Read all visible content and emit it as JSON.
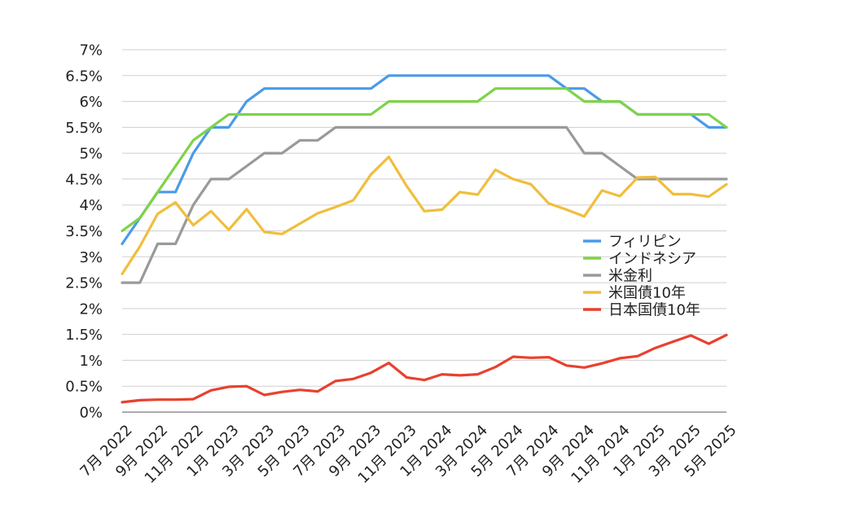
{
  "chart_data": {
    "type": "line",
    "title": "",
    "xlabel": "",
    "ylabel": "",
    "ylim": [
      0,
      7
    ],
    "y_ticks": [
      "0%",
      "0.5%",
      "1%",
      "1.5%",
      "2%",
      "2.5%",
      "3%",
      "3.5%",
      "4%",
      "4.5%",
      "5%",
      "5.5%",
      "6%",
      "6.5%",
      "7%"
    ],
    "grid": "horizontal",
    "legend_position": "right",
    "x": [
      "7月 2022",
      "8月 2022",
      "9月 2022",
      "10月 2022",
      "11月 2022",
      "12月 2022",
      "1月 2023",
      "2月 2023",
      "3月 2023",
      "4月 2023",
      "5月 2023",
      "6月 2023",
      "7月 2023",
      "8月 2023",
      "9月 2023",
      "10月 2023",
      "11月 2023",
      "12月 2023",
      "1月 2024",
      "2月 2024",
      "3月 2024",
      "4月 2024",
      "5月 2024",
      "6月 2024",
      "7月 2024",
      "8月 2024",
      "9月 2024",
      "10月 2024",
      "11月 2024",
      "12月 2024",
      "1月 2025",
      "2月 2025",
      "3月 2025",
      "4月 2025",
      "5月 2025"
    ],
    "x_tick_labels": [
      "7月 2022",
      "9月 2022",
      "11月 2022",
      "1月 2023",
      "3月 2023",
      "5月 2023",
      "7月 2023",
      "9月 2023",
      "11月 2023",
      "1月 2024",
      "3月 2024",
      "5月 2024",
      "7月 2024",
      "9月 2024",
      "11月 2024",
      "1月 2025",
      "3月 2025",
      "5月 2025"
    ],
    "series": [
      {
        "name": "フィリピン",
        "color": "#4a9be8",
        "values": [
          3.25,
          3.75,
          4.25,
          4.25,
          5.0,
          5.5,
          5.5,
          6.0,
          6.25,
          6.25,
          6.25,
          6.25,
          6.25,
          6.25,
          6.25,
          6.5,
          6.5,
          6.5,
          6.5,
          6.5,
          6.5,
          6.5,
          6.5,
          6.5,
          6.5,
          6.25,
          6.25,
          6.0,
          6.0,
          5.75,
          5.75,
          5.75,
          5.75,
          5.5,
          5.5
        ]
      },
      {
        "name": "インドネシア",
        "color": "#7dd34a",
        "values": [
          3.5,
          3.75,
          4.25,
          4.75,
          5.25,
          5.5,
          5.75,
          5.75,
          5.75,
          5.75,
          5.75,
          5.75,
          5.75,
          5.75,
          5.75,
          6.0,
          6.0,
          6.0,
          6.0,
          6.0,
          6.0,
          6.25,
          6.25,
          6.25,
          6.25,
          6.25,
          6.0,
          6.0,
          6.0,
          5.75,
          5.75,
          5.75,
          5.75,
          5.75,
          5.5
        ]
      },
      {
        "name": "米金利",
        "color": "#9a9a9a",
        "values": [
          2.5,
          2.5,
          3.25,
          3.25,
          4.0,
          4.5,
          4.5,
          4.75,
          5.0,
          5.0,
          5.25,
          5.25,
          5.5,
          5.5,
          5.5,
          5.5,
          5.5,
          5.5,
          5.5,
          5.5,
          5.5,
          5.5,
          5.5,
          5.5,
          5.5,
          5.5,
          5.0,
          5.0,
          4.75,
          4.5,
          4.5,
          4.5,
          4.5,
          4.5,
          4.5
        ]
      },
      {
        "name": "米国債10年",
        "color": "#f0be3c",
        "values": [
          2.67,
          3.2,
          3.83,
          4.05,
          3.61,
          3.88,
          3.52,
          3.92,
          3.48,
          3.44,
          3.64,
          3.84,
          3.96,
          4.09,
          4.59,
          4.93,
          4.37,
          3.88,
          3.91,
          4.25,
          4.2,
          4.68,
          4.5,
          4.4,
          4.03,
          3.91,
          3.78,
          4.28,
          4.17,
          4.53,
          4.54,
          4.21,
          4.21,
          4.16,
          4.4
        ]
      },
      {
        "name": "日本国債10年",
        "color": "#e8412e",
        "values": [
          0.19,
          0.23,
          0.24,
          0.24,
          0.25,
          0.42,
          0.49,
          0.5,
          0.33,
          0.39,
          0.43,
          0.4,
          0.6,
          0.64,
          0.76,
          0.95,
          0.67,
          0.62,
          0.73,
          0.71,
          0.73,
          0.87,
          1.07,
          1.05,
          1.06,
          0.9,
          0.86,
          0.94,
          1.04,
          1.08,
          1.24,
          1.36,
          1.48,
          1.32,
          1.49
        ]
      }
    ]
  }
}
